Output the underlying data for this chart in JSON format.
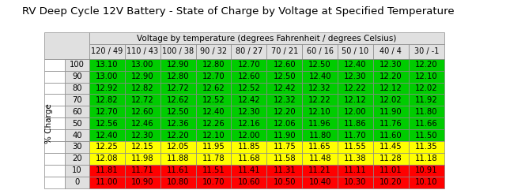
{
  "title": "RV Deep Cycle 12V Battery - State of Charge by Voltage at Specified Temperature",
  "col_header_main": "Voltage by temperature (degrees Fahrenheit / degrees Celsius)",
  "col_headers": [
    "120 / 49",
    "110 / 43",
    "100 / 38",
    "90 / 32",
    "80 / 27",
    "70 / 21",
    "60 / 16",
    "50 / 10",
    "40 / 4",
    "30 / -1"
  ],
  "row_headers": [
    "100",
    "90",
    "80",
    "70",
    "60",
    "50",
    "40",
    "30",
    "20",
    "10",
    "0"
  ],
  "row_label": "% Charge",
  "table_data": [
    [
      13.1,
      13.0,
      12.9,
      12.8,
      12.7,
      12.6,
      12.5,
      12.4,
      12.3,
      12.2
    ],
    [
      13.0,
      12.9,
      12.8,
      12.7,
      12.6,
      12.5,
      12.4,
      12.3,
      12.2,
      12.1
    ],
    [
      12.92,
      12.82,
      12.72,
      12.62,
      12.52,
      12.42,
      12.32,
      12.22,
      12.12,
      12.02
    ],
    [
      12.82,
      12.72,
      12.62,
      12.52,
      12.42,
      12.32,
      12.22,
      12.12,
      12.02,
      11.92
    ],
    [
      12.7,
      12.6,
      12.5,
      12.4,
      12.3,
      12.2,
      12.1,
      12.0,
      11.9,
      11.8
    ],
    [
      12.56,
      12.46,
      12.36,
      12.26,
      12.16,
      12.06,
      11.96,
      11.86,
      11.76,
      11.66
    ],
    [
      12.4,
      12.3,
      12.2,
      12.1,
      12.0,
      11.9,
      11.8,
      11.7,
      11.6,
      11.5
    ],
    [
      12.25,
      12.15,
      12.05,
      11.95,
      11.85,
      11.75,
      11.65,
      11.55,
      11.45,
      11.35
    ],
    [
      12.08,
      11.98,
      11.88,
      11.78,
      11.68,
      11.58,
      11.48,
      11.38,
      11.28,
      11.18
    ],
    [
      11.81,
      11.71,
      11.61,
      11.51,
      11.41,
      11.31,
      11.21,
      11.11,
      11.01,
      10.91
    ],
    [
      11.0,
      10.9,
      10.8,
      10.7,
      10.6,
      10.5,
      10.4,
      10.3,
      10.2,
      10.1
    ]
  ],
  "row_colors": [
    "#00cc00",
    "#00cc00",
    "#00cc00",
    "#00cc00",
    "#00cc00",
    "#00cc00",
    "#00cc00",
    "#ffff00",
    "#ffff00",
    "#ff0000",
    "#ff0000"
  ],
  "header_bg": "#e0e0e0",
  "bg_color": "#ffffff",
  "border_color": "#888888",
  "title_fontsize": 9.5,
  "header_fontsize": 7.5,
  "cell_fontsize": 7.2
}
